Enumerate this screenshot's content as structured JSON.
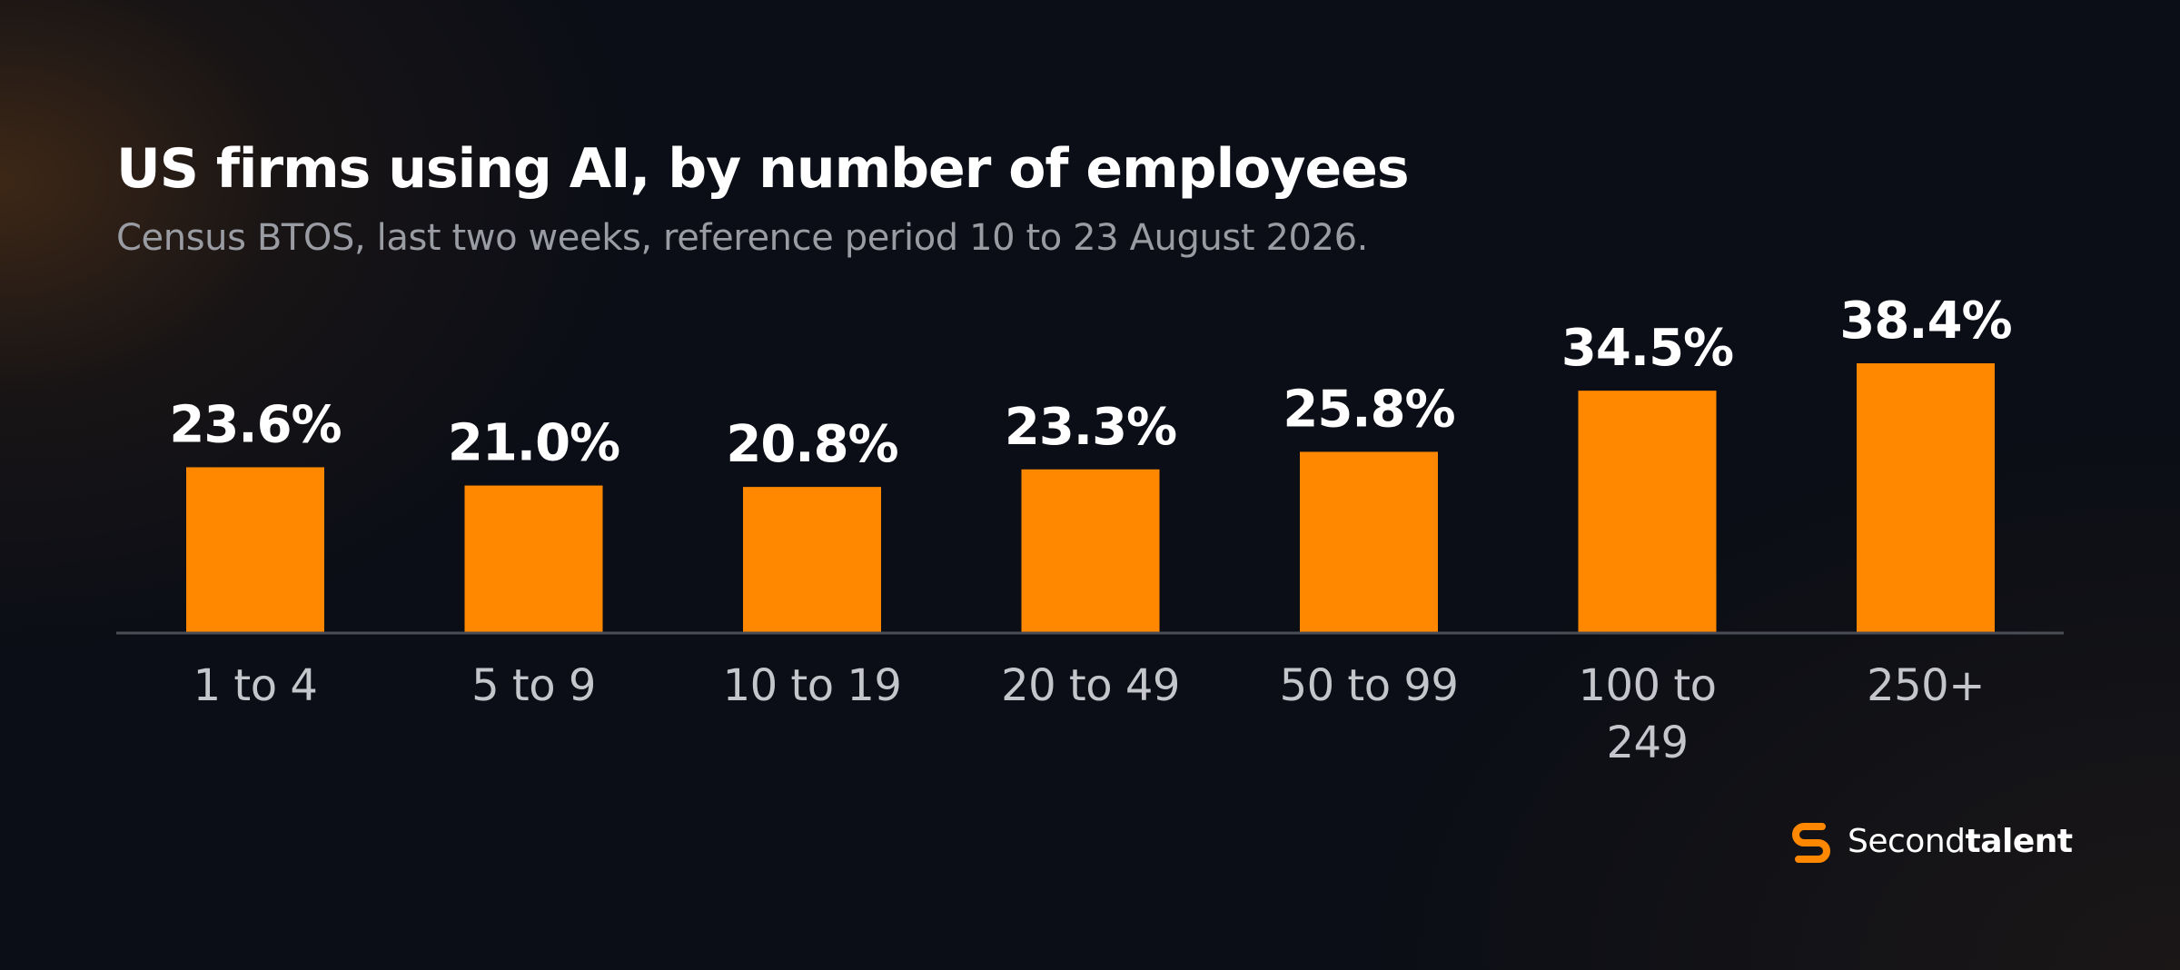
{
  "title": "US firms using AI, by number of employees",
  "subtitle": "Census BTOS, last two weeks, reference period 10 to 23 August 2026.",
  "chart_data": {
    "type": "bar",
    "title": "US firms using AI, by number of employees",
    "subtitle": "Census BTOS, last two weeks, reference period 10 to 23 August 2026.",
    "categories": [
      "1 to 4",
      "5 to 9",
      "10 to 19",
      "20 to 49",
      "50 to 99",
      "100 to 249",
      "250+"
    ],
    "category_lines": [
      [
        "1 to 4"
      ],
      [
        "5 to 9"
      ],
      [
        "10 to 19"
      ],
      [
        "20 to 49"
      ],
      [
        "50 to 99"
      ],
      [
        "100 to",
        "249"
      ],
      [
        "250+"
      ]
    ],
    "values": [
      23.6,
      21.0,
      20.8,
      23.3,
      25.8,
      34.5,
      38.4
    ],
    "value_labels": [
      "23.6%",
      "21.0%",
      "20.8%",
      "23.3%",
      "25.8%",
      "34.5%",
      "38.4%"
    ],
    "xlabel": "",
    "ylabel": "",
    "ylim": [
      0,
      38.4
    ],
    "grid": false,
    "bar_color": "#ff8800"
  },
  "logo": {
    "text_light": "Second",
    "text_bold": "talent",
    "icon": "secondtalent-logo-icon",
    "color": "#ff8800"
  }
}
